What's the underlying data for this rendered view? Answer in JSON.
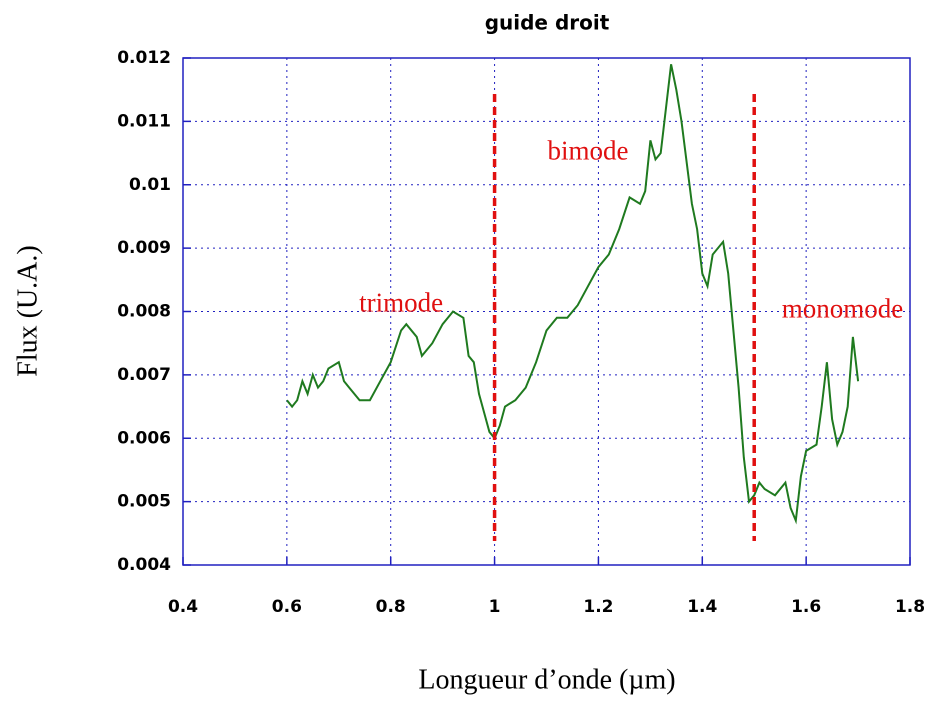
{
  "chart_data": {
    "type": "line",
    "title": "guide droit",
    "xlabel": "Longueur d’onde (µm)",
    "ylabel": "Flux (U.A.)",
    "x": [
      0.6,
      0.61,
      0.62,
      0.63,
      0.64,
      0.65,
      0.66,
      0.67,
      0.68,
      0.7,
      0.71,
      0.72,
      0.74,
      0.76,
      0.78,
      0.8,
      0.82,
      0.83,
      0.85,
      0.86,
      0.88,
      0.9,
      0.92,
      0.94,
      0.95,
      0.96,
      0.97,
      0.98,
      0.99,
      1.0,
      1.01,
      1.02,
      1.04,
      1.06,
      1.08,
      1.1,
      1.12,
      1.14,
      1.16,
      1.18,
      1.2,
      1.22,
      1.24,
      1.26,
      1.28,
      1.29,
      1.3,
      1.31,
      1.32,
      1.33,
      1.34,
      1.35,
      1.36,
      1.38,
      1.39,
      1.4,
      1.41,
      1.42,
      1.44,
      1.45,
      1.46,
      1.47,
      1.48,
      1.49,
      1.5,
      1.51,
      1.52,
      1.54,
      1.56,
      1.57,
      1.58,
      1.59,
      1.6,
      1.62,
      1.63,
      1.64,
      1.65,
      1.66,
      1.67,
      1.68,
      1.69,
      1.7
    ],
    "series": [
      {
        "color": "#1f7a1f",
        "values": [
          0.0066,
          0.0065,
          0.0066,
          0.0069,
          0.0067,
          0.007,
          0.0068,
          0.0069,
          0.0071,
          0.0072,
          0.0069,
          0.0068,
          0.0066,
          0.0066,
          0.0069,
          0.0072,
          0.0077,
          0.0078,
          0.0076,
          0.0073,
          0.0075,
          0.0078,
          0.008,
          0.0079,
          0.0073,
          0.0072,
          0.0067,
          0.0064,
          0.0061,
          0.006,
          0.0062,
          0.0065,
          0.0066,
          0.0068,
          0.0072,
          0.0077,
          0.0079,
          0.0079,
          0.0081,
          0.0084,
          0.0087,
          0.0089,
          0.0093,
          0.0098,
          0.0097,
          0.0099,
          0.0107,
          0.0104,
          0.0105,
          0.0112,
          0.0119,
          0.0115,
          0.011,
          0.0097,
          0.0093,
          0.0086,
          0.0084,
          0.0089,
          0.0091,
          0.0086,
          0.0077,
          0.0068,
          0.0057,
          0.005,
          0.0051,
          0.0053,
          0.0052,
          0.0051,
          0.0053,
          0.0049,
          0.0047,
          0.0054,
          0.0058,
          0.0059,
          0.0065,
          0.0072,
          0.0063,
          0.0059,
          0.0061,
          0.0065,
          0.0076,
          0.0069
        ]
      }
    ],
    "xlim": [
      0.4,
      1.8
    ],
    "xticks": [
      0.4,
      0.6,
      0.8,
      1,
      1.2,
      1.4,
      1.6,
      1.8
    ],
    "ylim": [
      0.004,
      0.012
    ],
    "yticks": [
      0.004,
      0.005,
      0.006,
      0.007,
      0.008,
      0.009,
      0.01,
      0.011,
      0.012
    ],
    "grid": true,
    "vlines": [
      1,
      1.5
    ],
    "vline_color": "#e01010",
    "annotations": [
      "trimode",
      "bimode",
      "monomode"
    ]
  }
}
